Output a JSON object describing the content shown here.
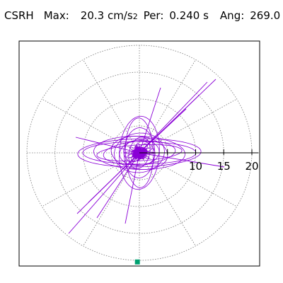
{
  "header": {
    "station": "CSRH",
    "max_label": "Max:",
    "max_value": "20.3 cm/s",
    "max_exponent": "2",
    "per_label": "Per:",
    "per_value": "0.240 s",
    "ang_label": "Ang:",
    "ang_value": "269.0"
  },
  "colors": {
    "trace": "#8a00d6",
    "marker": "#00a070",
    "grid": "#777777",
    "axis": "#000000"
  },
  "chart_data": {
    "type": "polar",
    "r_ticks": [
      10,
      15,
      20
    ],
    "r_ticks_drawn": [
      5,
      10,
      15,
      20
    ],
    "r_max": 20.3,
    "angle_gridlines_deg": [
      0,
      30,
      60,
      90,
      120,
      150,
      180,
      210,
      240,
      270,
      300,
      330
    ],
    "peak": {
      "amplitude": 20.3,
      "angle_deg": 269.0,
      "unit": "cm/s2"
    },
    "period_s": 0.24,
    "grid": "dotted"
  }
}
